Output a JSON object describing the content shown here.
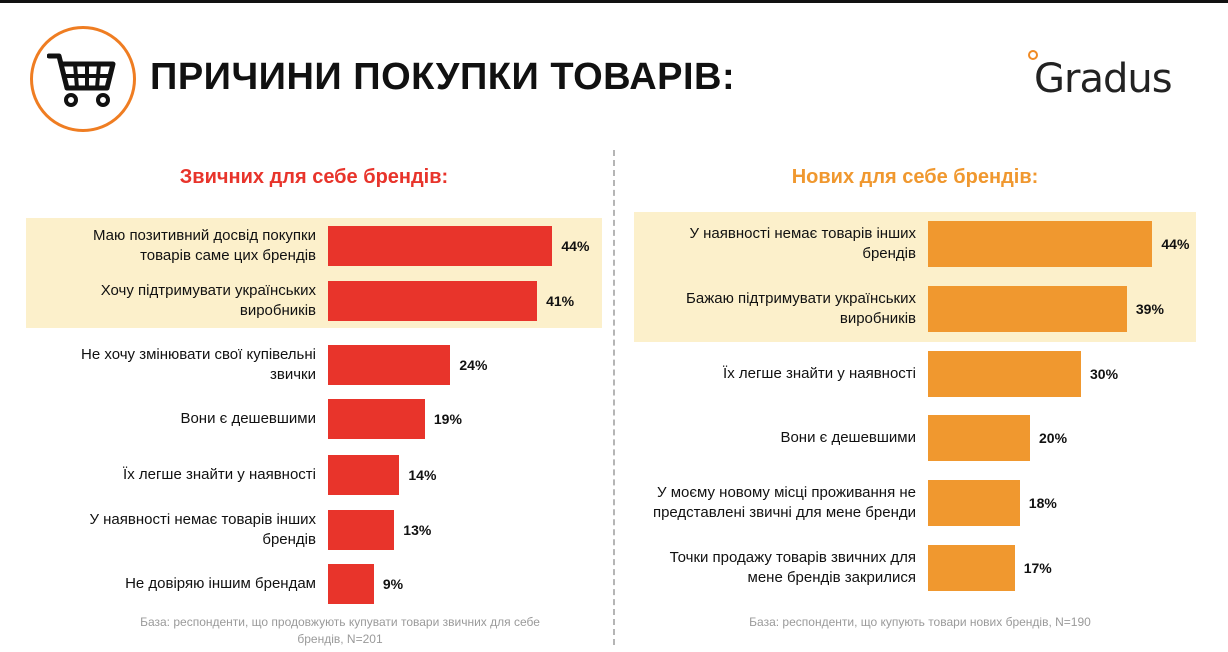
{
  "header": {
    "title": "ПРИЧИНИ ПОКУПКИ ТОВАРІВ:",
    "brand": "Gradus"
  },
  "colors": {
    "left_bar": "#e8342b",
    "right_bar": "#f0982f",
    "highlight": "#fcf0cb",
    "logo_ring": "#ef7d22"
  },
  "chart_data": [
    {
      "type": "bar",
      "orientation": "horizontal",
      "title": "Звичних для себе брендів:",
      "categories": [
        "Маю позитивний досвід покупки товарів саме цих брендів",
        "Хочу підтримувати українських виробників",
        "Не хочу змінювати свої купівельні звички",
        "Вони є дешевшими",
        "Їх легше знайти у наявності",
        "У наявності немає товарів інших брендів",
        "Не довіряю іншим брендам"
      ],
      "values": [
        44,
        41,
        24,
        19,
        14,
        13,
        9
      ],
      "value_labels": [
        "44%",
        "41%",
        "24%",
        "19%",
        "14%",
        "13%",
        "9%"
      ],
      "highlighted": [
        0,
        1
      ],
      "unit": "%",
      "note": "База: респонденти, що продовжують купувати товари звичних для себе брендів, N=201"
    },
    {
      "type": "bar",
      "orientation": "horizontal",
      "title": "Нових для себе брендів:",
      "categories": [
        "У наявності немає товарів інших брендів",
        "Бажаю підтримувати українських виробників",
        "Їх легше знайти у наявності",
        "Вони є дешевшими",
        "У моєму новому місці проживання не представлені звичні для мене бренди",
        "Точки продажу товарів звичних для мене брендів закрилися"
      ],
      "values": [
        44,
        39,
        30,
        20,
        18,
        17
      ],
      "value_labels": [
        "44%",
        "39%",
        "30%",
        "20%",
        "18%",
        "17%"
      ],
      "highlighted": [
        0,
        1
      ],
      "unit": "%",
      "note": "База: респонденти, що купують товари нових брендів, N=190"
    }
  ]
}
